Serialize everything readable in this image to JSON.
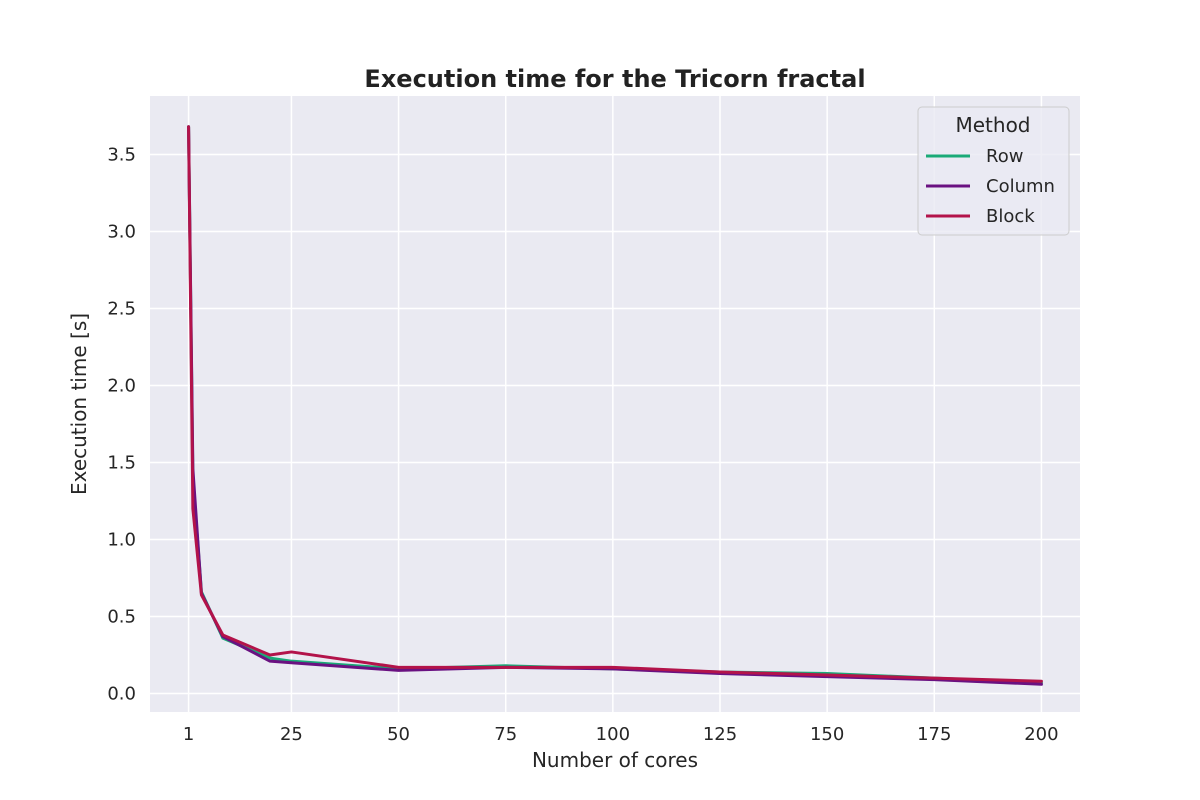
{
  "chart_data": {
    "type": "line",
    "title": "Execution time for the Tricorn fractal",
    "xlabel": "Number of cores",
    "ylabel": "Execution time [s]",
    "xlim": [
      -8,
      209
    ],
    "ylim": [
      -0.12,
      3.88
    ],
    "xticks": [
      1,
      25,
      50,
      75,
      100,
      125,
      150,
      175,
      200
    ],
    "yticks": [
      0.0,
      0.5,
      1.0,
      1.5,
      2.0,
      2.5,
      3.0,
      3.5
    ],
    "grid": true,
    "legend": {
      "title": "Method",
      "placement": "top-right"
    },
    "x": [
      1,
      2,
      4,
      9,
      20,
      25,
      50,
      75,
      100,
      125,
      150,
      175,
      200
    ],
    "series": [
      {
        "name": "Row",
        "color": "#1aaa77",
        "values": [
          3.68,
          1.4,
          0.66,
          0.36,
          0.23,
          0.21,
          0.16,
          0.18,
          0.16,
          0.14,
          0.13,
          0.1,
          0.07
        ]
      },
      {
        "name": "Column",
        "color": "#6a1181",
        "values": [
          3.68,
          1.46,
          0.65,
          0.37,
          0.21,
          0.2,
          0.15,
          0.17,
          0.16,
          0.13,
          0.11,
          0.09,
          0.06
        ]
      },
      {
        "name": "Block",
        "color": "#b3134a",
        "values": [
          3.68,
          1.2,
          0.64,
          0.38,
          0.25,
          0.27,
          0.17,
          0.17,
          0.17,
          0.14,
          0.12,
          0.1,
          0.08
        ]
      }
    ]
  }
}
